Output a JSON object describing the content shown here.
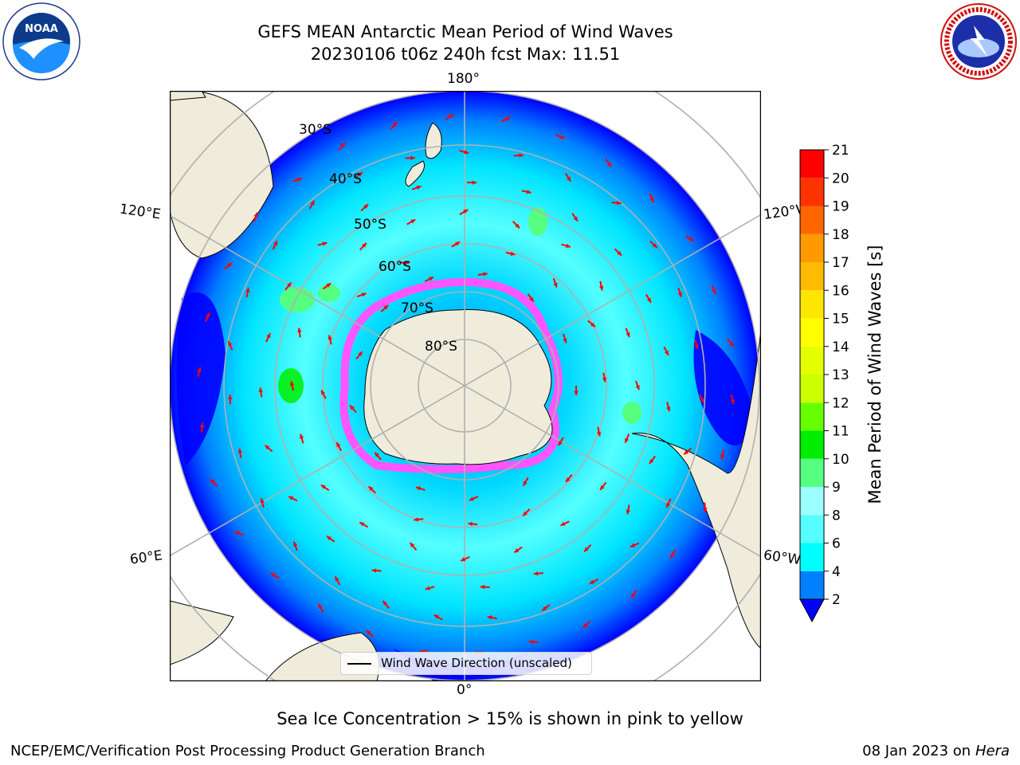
{
  "header": {
    "title_line1": "GEFS MEAN Antarctic Mean Period of Wind Waves",
    "title_line2": "20230106 t06z 240h fcst   Max: 11.51"
  },
  "logos": {
    "left": "NOAA",
    "right": "NATIONAL WEATHER SERVICE"
  },
  "map": {
    "projection": "south-polar-stereographic",
    "longitude_labels": [
      "180°",
      "120°E",
      "120°W",
      "60°E",
      "60°W",
      "0°"
    ],
    "latitude_labels": [
      "30°S",
      "40°S",
      "50°S",
      "60°S",
      "70°S",
      "80°S"
    ],
    "land_color": "#efecdc",
    "ocean_color_low": "#0000ff",
    "legend_label": "Wind Wave Direction (unscaled)",
    "arrow_color": "#ff0000"
  },
  "colorbar": {
    "label": "Mean Period of Wind Waves [s]",
    "ticks": [
      "2",
      "4",
      "6",
      "8",
      "9",
      "10",
      "11",
      "12",
      "13",
      "14",
      "15",
      "16",
      "17",
      "18",
      "19",
      "20",
      "21"
    ],
    "colors": [
      "#0080ff",
      "#00ffff",
      "#55ffff",
      "#9bffff",
      "#55ff80",
      "#00ee00",
      "#66ff00",
      "#ccff00",
      "#e6ff00",
      "#ffff00",
      "#ffe600",
      "#ffbb00",
      "#ff9900",
      "#ff6600",
      "#ff3300",
      "#ff0000"
    ],
    "under_color": "#0000ff"
  },
  "caption": "Sea Ice Concentration > 15% is shown in pink to yellow",
  "footer": {
    "left": "NCEP/EMC/Verification Post Processing Product Generation Branch",
    "right_date": "08 Jan 2023 on ",
    "right_host": "Hera"
  }
}
